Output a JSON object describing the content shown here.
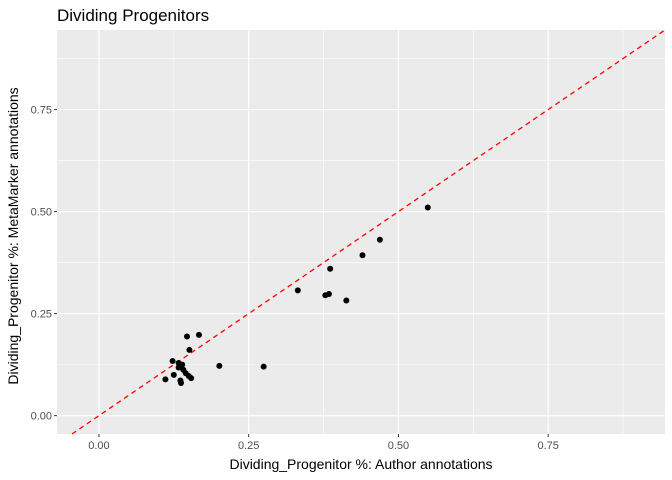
{
  "chart_data": {
    "type": "scatter",
    "title": "Dividing Progenitors",
    "xlabel": "Dividing_Progenitor %: Author annotations",
    "ylabel": "Dividing_Progenitor %: MetaMarker annotations",
    "xlim": [
      -0.07,
      0.945
    ],
    "ylim": [
      -0.045,
      0.945
    ],
    "x_ticks": [
      0.0,
      0.25,
      0.5,
      0.75
    ],
    "x_tick_labels": [
      "0.00",
      "0.25",
      "0.50",
      "0.75"
    ],
    "y_ticks": [
      0.0,
      0.25,
      0.5,
      0.75
    ],
    "y_tick_labels": [
      "0.00",
      "0.25",
      "0.50",
      "0.75"
    ],
    "grid": true,
    "reference_line": {
      "type": "identity",
      "slope": 1,
      "intercept": 0,
      "color": "#ff0000",
      "style": "dashed"
    },
    "point_color": "#000000",
    "panel_color": "#ebebeb",
    "points": [
      {
        "x": 0.549,
        "y": 0.51
      },
      {
        "x": 0.469,
        "y": 0.431
      },
      {
        "x": 0.44,
        "y": 0.393
      },
      {
        "x": 0.386,
        "y": 0.36
      },
      {
        "x": 0.332,
        "y": 0.307
      },
      {
        "x": 0.384,
        "y": 0.298
      },
      {
        "x": 0.378,
        "y": 0.295
      },
      {
        "x": 0.413,
        "y": 0.282
      },
      {
        "x": 0.167,
        "y": 0.198
      },
      {
        "x": 0.147,
        "y": 0.194
      },
      {
        "x": 0.151,
        "y": 0.161
      },
      {
        "x": 0.123,
        "y": 0.134
      },
      {
        "x": 0.133,
        "y": 0.129
      },
      {
        "x": 0.139,
        "y": 0.125
      },
      {
        "x": 0.133,
        "y": 0.118
      },
      {
        "x": 0.201,
        "y": 0.122
      },
      {
        "x": 0.275,
        "y": 0.12
      },
      {
        "x": 0.141,
        "y": 0.112
      },
      {
        "x": 0.145,
        "y": 0.104
      },
      {
        "x": 0.125,
        "y": 0.1
      },
      {
        "x": 0.15,
        "y": 0.097
      },
      {
        "x": 0.154,
        "y": 0.092
      },
      {
        "x": 0.111,
        "y": 0.089
      },
      {
        "x": 0.136,
        "y": 0.086
      },
      {
        "x": 0.137,
        "y": 0.08
      }
    ]
  }
}
